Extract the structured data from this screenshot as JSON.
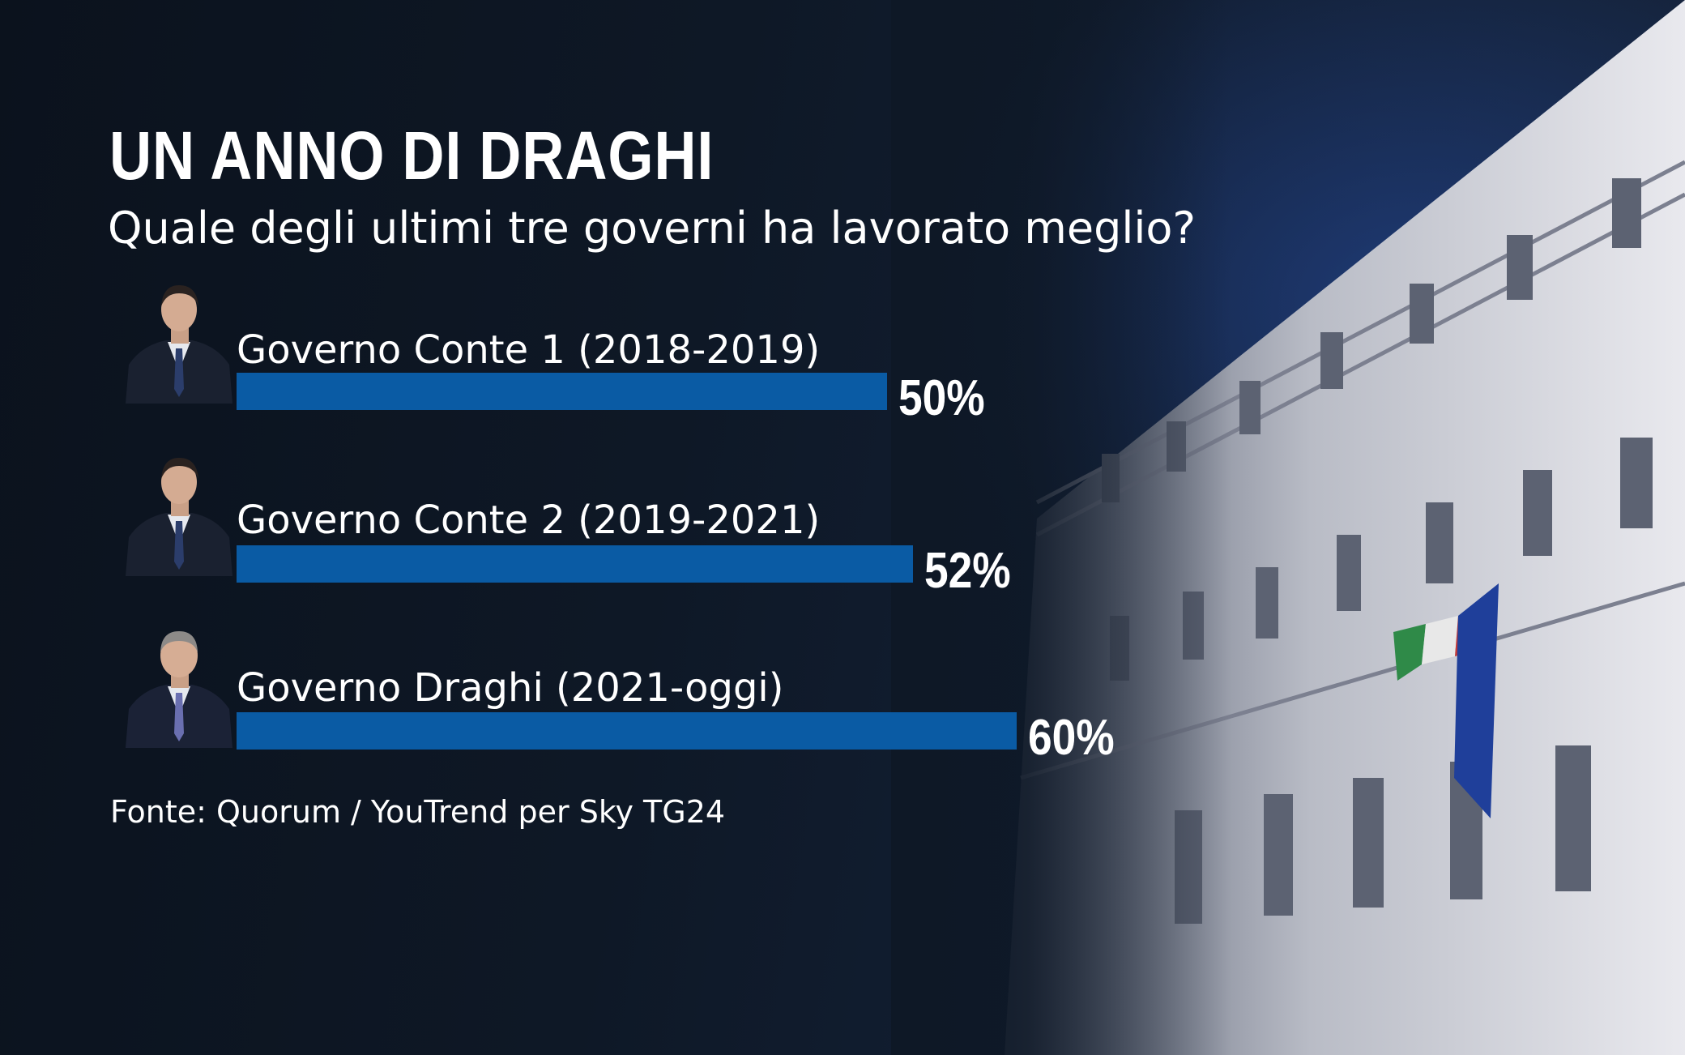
{
  "title": "UN ANNO DI DRAGHI",
  "subtitle": "Quale degli ultimi tre governi ha lavorato meglio?",
  "source": "Fonte: Quorum / YouTrend per Sky TG24",
  "colors": {
    "bar": "#0a5ba4",
    "background": "#0c1420",
    "text": "#ffffff"
  },
  "chart_data": {
    "type": "bar",
    "orientation": "horizontal",
    "categories": [
      "Governo Conte 1 (2018-2019)",
      "Governo Conte 2 (2019-2021)",
      "Governo Draghi (2021-oggi)"
    ],
    "values": [
      50,
      52,
      60
    ],
    "value_labels": [
      "50%",
      "52%",
      "60%"
    ],
    "unit": "%",
    "grid": false,
    "title": "UN ANNO DI DRAGHI",
    "subtitle": "Quale degli ultimi tre governi ha lavorato meglio?"
  }
}
